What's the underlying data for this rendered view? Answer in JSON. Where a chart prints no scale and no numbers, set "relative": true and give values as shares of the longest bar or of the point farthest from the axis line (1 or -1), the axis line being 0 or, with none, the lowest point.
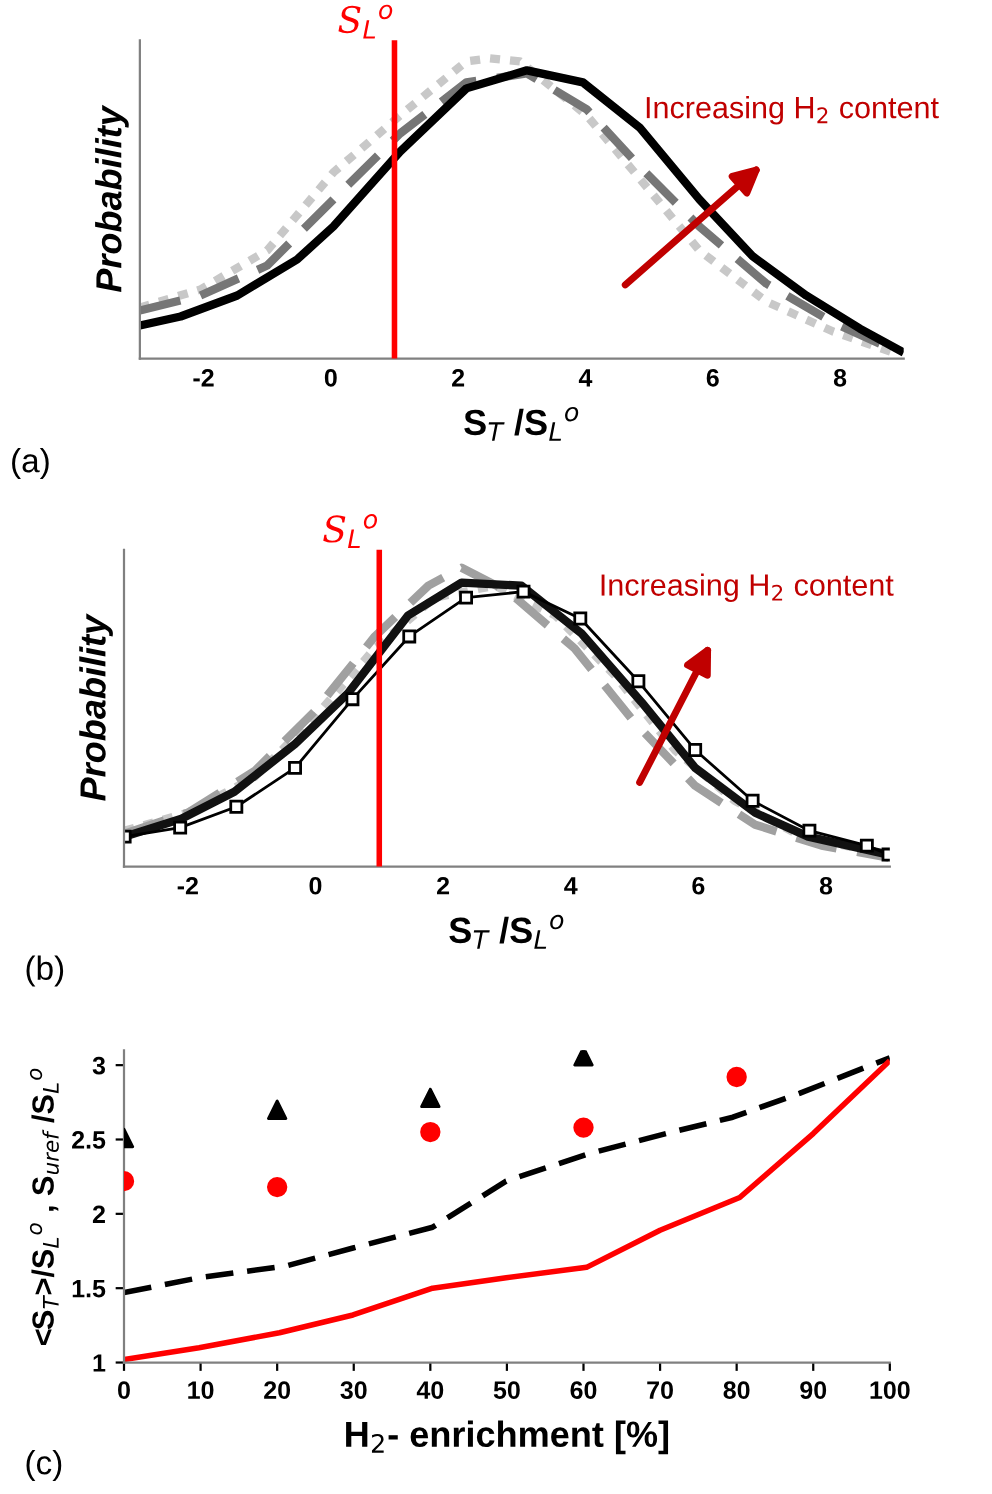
{
  "chart_data": [
    {
      "type": "line",
      "xlabel": "S$_{T}$ /S$_{L}$$^{o}$",
      "ylabel": "Probability",
      "relative": true,
      "xlim": [
        -3,
        9
      ],
      "xticks": [
        -2,
        0,
        2,
        4,
        6,
        8
      ],
      "grid": false,
      "legend": false,
      "annotations": [
        "Increasing H$_{2}$ content",
        "(a)"
      ],
      "ref_lines": [
        {
          "axis": "x",
          "value": 1,
          "label": "S$_{L}$$^{o}$",
          "color": "#ff0000"
        }
      ],
      "series": [
        {
          "color": "#c8c8c8",
          "line_style": "dotted",
          "x": [
            -3,
            -2.05,
            -1.0,
            0.04,
            1.09,
            2.13,
            2.5,
            2.97,
            4.02,
            4.85,
            5.79,
            6.84,
            7.89,
            8.83
          ],
          "values": [
            0.17,
            0.23,
            0.36,
            0.62,
            0.81,
            0.99,
            1.0,
            0.99,
            0.81,
            0.6,
            0.36,
            0.19,
            0.09,
            0.02
          ]
        },
        {
          "color": "#767676",
          "line_style": "dashed",
          "x": [
            -3,
            -2.05,
            -1.0,
            0.04,
            1.09,
            2.13,
            3.08,
            4.02,
            4.85,
            5.79,
            6.84,
            7.89,
            8.83
          ],
          "values": [
            0.16,
            0.21,
            0.31,
            0.53,
            0.75,
            0.92,
            0.95,
            0.83,
            0.64,
            0.44,
            0.25,
            0.12,
            0.03
          ]
        },
        {
          "color": "#000000",
          "line_style": "solid",
          "x": [
            -3,
            -2.36,
            -1.47,
            -0.53,
            0.04,
            1.09,
            2.13,
            3.08,
            3.96,
            4.85,
            5.79,
            6.63,
            7.47,
            8.31,
            9.0
          ],
          "values": [
            0.11,
            0.14,
            0.21,
            0.33,
            0.44,
            0.69,
            0.9,
            0.96,
            0.92,
            0.77,
            0.53,
            0.34,
            0.21,
            0.1,
            0.02
          ]
        }
      ]
    },
    {
      "type": "line",
      "xlabel": "S$_{T}$ /S$_{L}$$^{o}$",
      "ylabel": "Probability",
      "relative": true,
      "xlim": [
        -3,
        9
      ],
      "xticks": [
        -2,
        0,
        2,
        4,
        6,
        8
      ],
      "grid": false,
      "legend": false,
      "annotations": [
        "Increasing H$_{2}$ content",
        "(b)"
      ],
      "ref_lines": [
        {
          "axis": "x",
          "value": 1,
          "label": "S$_{L}$$^{o}$",
          "color": "#ff0000"
        }
      ],
      "series": [
        {
          "color": "#c8c8c8",
          "line_style": "dotted",
          "x": [
            -2.99,
            -2.0,
            -0.95,
            -0.01,
            0.93,
            1.87,
            2.81,
            3.76,
            4.69,
            5.63,
            6.57,
            7.62,
            8.98
          ],
          "values": [
            0.12,
            0.18,
            0.3,
            0.5,
            0.73,
            0.9,
            0.94,
            0.84,
            0.64,
            0.39,
            0.22,
            0.1,
            0.04
          ]
        },
        {
          "color": "#a0a0a0",
          "line_style": "dashed",
          "x": [
            -2.99,
            -2.0,
            -0.95,
            -0.01,
            0.93,
            1.77,
            2.29,
            3.02,
            4.06,
            5.01,
            5.95,
            6.89,
            7.93,
            8.98
          ],
          "values": [
            0.11,
            0.18,
            0.32,
            0.52,
            0.77,
            0.94,
            1.0,
            0.92,
            0.73,
            0.48,
            0.27,
            0.14,
            0.07,
            0.03
          ]
        },
        {
          "color": "#111111",
          "line_style": "solid",
          "x": [
            -2.99,
            -2.1,
            -1.27,
            -0.32,
            0.51,
            1.45,
            2.29,
            3.23,
            4.17,
            5.11,
            5.95,
            6.89,
            7.72,
            8.98
          ],
          "values": [
            0.1,
            0.16,
            0.25,
            0.41,
            0.58,
            0.84,
            0.95,
            0.94,
            0.78,
            0.55,
            0.33,
            0.18,
            0.1,
            0.04
          ]
        },
        {
          "color": "#000000",
          "line_style": "solid",
          "marker": "square",
          "x": [
            -2.99,
            -2.12,
            -1.24,
            -0.32,
            0.58,
            1.47,
            2.36,
            3.26,
            4.15,
            5.06,
            5.95,
            6.85,
            7.74,
            8.64,
            8.98
          ],
          "values": [
            0.1,
            0.13,
            0.2,
            0.33,
            0.56,
            0.77,
            0.9,
            0.92,
            0.83,
            0.62,
            0.39,
            0.22,
            0.12,
            0.07,
            0.04
          ]
        }
      ]
    },
    {
      "type": "scatter",
      "xlabel": "H$_{2}$- enrichment [%]",
      "ylabel": "<S$_{T}$>/S$_{L}$$^{o}$ , S$_{uref}$ /S$_{L}$$^{o}$",
      "xlim": [
        0,
        100
      ],
      "xticks": [
        0,
        10,
        20,
        30,
        40,
        50,
        60,
        70,
        80,
        90,
        100
      ],
      "ylim": [
        1,
        3.1
      ],
      "yticks": [
        1,
        1.5,
        2,
        2.5,
        3
      ],
      "grid": false,
      "legend": false,
      "annotations": [
        "(c)"
      ],
      "series": [
        {
          "type": "scatter",
          "marker": "triangle",
          "color": "#000000",
          "x": [
            0,
            20,
            40,
            60
          ],
          "values": [
            2.51,
            2.7,
            2.78,
            3.06
          ]
        },
        {
          "type": "scatter",
          "marker": "circle",
          "color": "#ff0000",
          "x": [
            0,
            20,
            40,
            60,
            80
          ],
          "values": [
            2.22,
            2.18,
            2.55,
            2.58,
            2.92
          ]
        },
        {
          "type": "line",
          "line_style": "dashed",
          "color": "#000000",
          "x": [
            0,
            9.8,
            21.2,
            29.9,
            40.3,
            49.9,
            60.4,
            70.8,
            79.5,
            88.2,
            100
          ],
          "values": [
            1.47,
            1.57,
            1.65,
            1.77,
            1.91,
            2.22,
            2.4,
            2.54,
            2.65,
            2.81,
            3.05
          ]
        },
        {
          "type": "line",
          "line_style": "solid",
          "color": "#ff0000",
          "x": [
            0,
            9.8,
            20.3,
            29.9,
            40.3,
            49.9,
            60.4,
            70,
            80.4,
            90,
            100
          ],
          "values": [
            1.02,
            1.1,
            1.2,
            1.32,
            1.5,
            1.57,
            1.64,
            1.89,
            2.11,
            2.54,
            3.03
          ]
        }
      ]
    }
  ]
}
